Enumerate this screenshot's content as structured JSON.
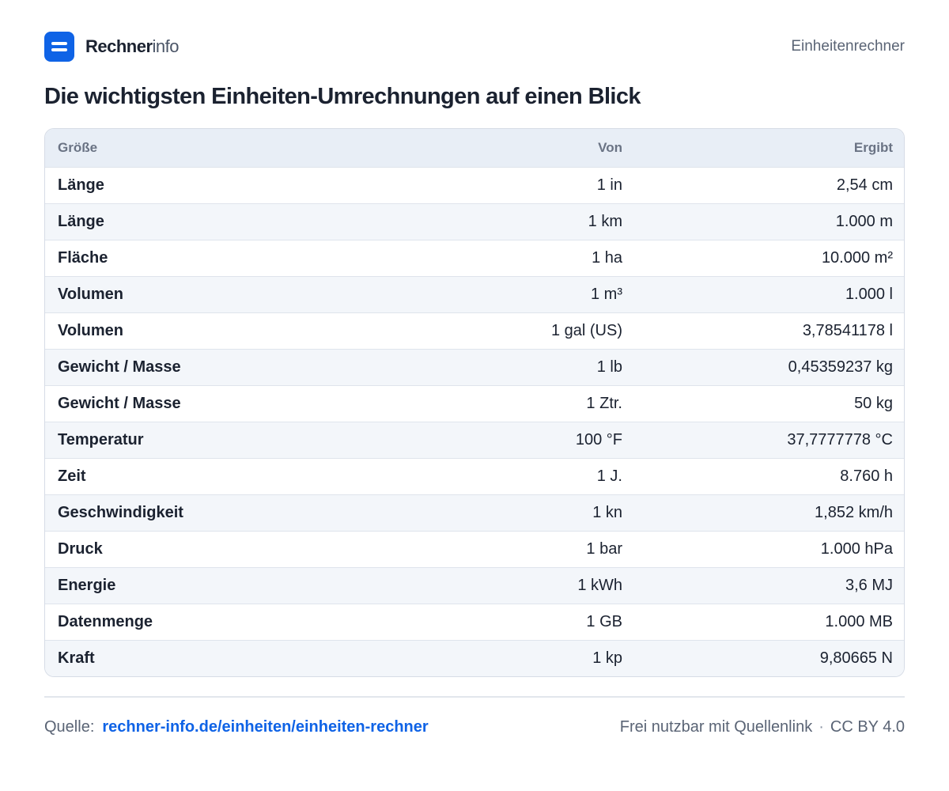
{
  "brand": {
    "name_strong": "Rechner",
    "name_light": "info"
  },
  "header": {
    "link": "Einheitenrechner"
  },
  "title": "Die wichtigsten Einheiten-Umrechnungen auf einen Blick",
  "table": {
    "headers": {
      "quantity": "Größe",
      "from": "Von",
      "result": "Ergibt"
    },
    "rows": [
      {
        "quantity": "Länge",
        "from": "1 in",
        "result": "2,54 cm"
      },
      {
        "quantity": "Länge",
        "from": "1 km",
        "result": "1.000 m"
      },
      {
        "quantity": "Fläche",
        "from": "1 ha",
        "result": "10.000 m²"
      },
      {
        "quantity": "Volumen",
        "from": "1 m³",
        "result": "1.000 l"
      },
      {
        "quantity": "Volumen",
        "from": "1 gal (US)",
        "result": "3,78541178 l"
      },
      {
        "quantity": "Gewicht / Masse",
        "from": "1 lb",
        "result": "0,45359237 kg"
      },
      {
        "quantity": "Gewicht / Masse",
        "from": "1 Ztr.",
        "result": "50 kg"
      },
      {
        "quantity": "Temperatur",
        "from": "100 °F",
        "result": "37,7777778 °C"
      },
      {
        "quantity": "Zeit",
        "from": "1 J.",
        "result": "8.760 h"
      },
      {
        "quantity": "Geschwindigkeit",
        "from": "1 kn",
        "result": "1,852 km/h"
      },
      {
        "quantity": "Druck",
        "from": "1 bar",
        "result": "1.000 hPa"
      },
      {
        "quantity": "Energie",
        "from": "1 kWh",
        "result": "3,6 MJ"
      },
      {
        "quantity": "Datenmenge",
        "from": "1 GB",
        "result": "1.000 MB"
      },
      {
        "quantity": "Kraft",
        "from": "1 kp",
        "result": "9,80665 N"
      }
    ]
  },
  "footer": {
    "source_label": "Quelle:",
    "source_link": "rechner-info.de/einheiten/einheiten-rechner",
    "license_note": "Frei nutzbar mit Quellenlink",
    "separator": "·",
    "license": "CC BY 4.0"
  },
  "colors": {
    "accent": "#0f63e6",
    "header_bg": "#e8eef6",
    "row_alt_bg": "#f3f6fa"
  }
}
